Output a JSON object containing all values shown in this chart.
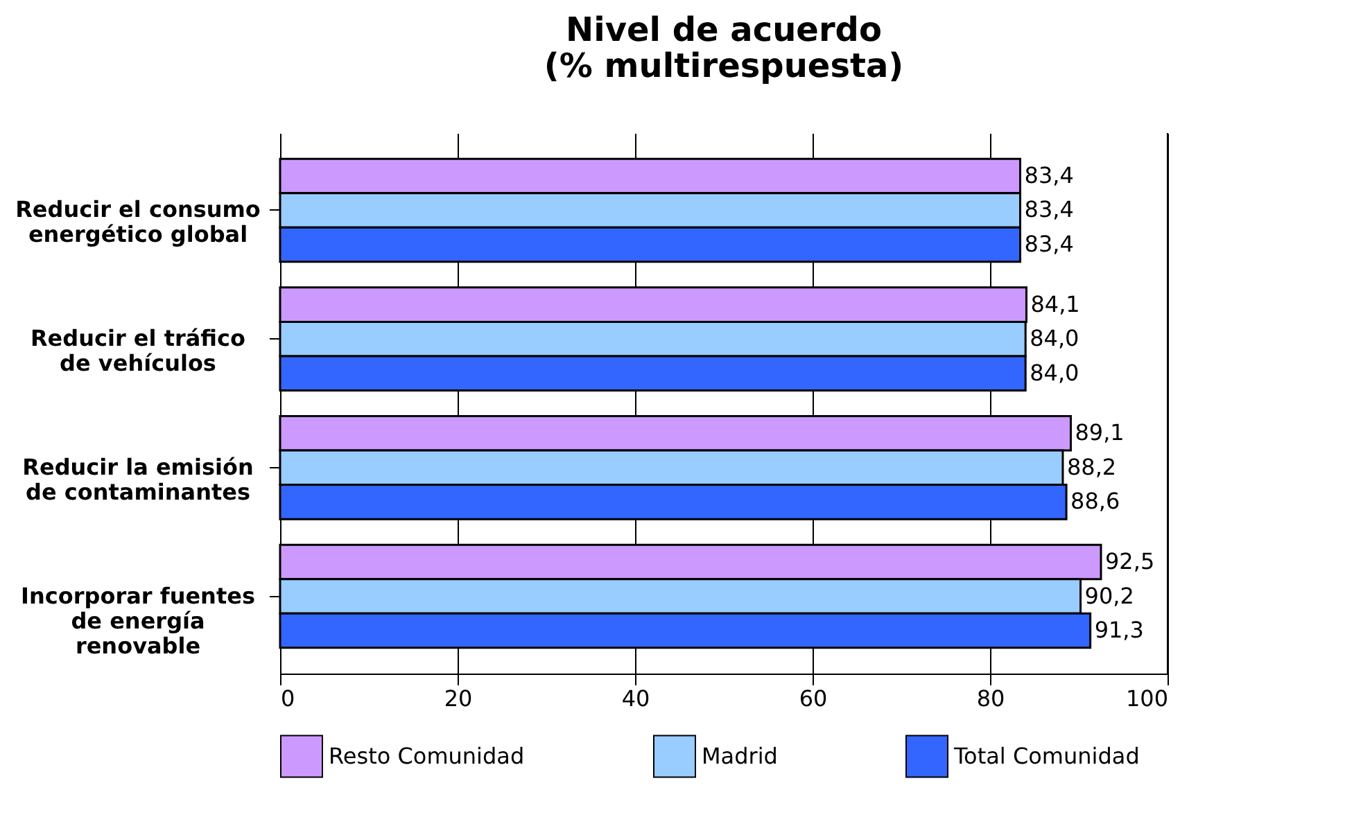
{
  "chart_data": {
    "type": "bar",
    "orientation": "horizontal",
    "title": "Nivel de acuerdo\n(% multirespuesta)",
    "categories": [
      "Reducir el consumo energético global",
      "Reducir el tráfico de vehículos",
      "Reducir la emisión de contaminantes",
      "Incorporar fuentes de energía renovable"
    ],
    "series": [
      {
        "name": "Resto Comunidad",
        "color": "#cc99ff",
        "values": [
          83.4,
          84.1,
          89.1,
          92.5
        ],
        "value_labels": [
          "83,4",
          "84,1",
          "89,1",
          "92,5"
        ]
      },
      {
        "name": "Madrid",
        "color": "#99ccff",
        "values": [
          83.4,
          84.0,
          88.2,
          90.2
        ],
        "value_labels": [
          "83,4",
          "84,0",
          "88,2",
          "90,2"
        ]
      },
      {
        "name": "Total Comunidad",
        "color": "#3366ff",
        "values": [
          83.4,
          84.0,
          88.6,
          91.3
        ],
        "value_labels": [
          "83,4",
          "84,0",
          "88,6",
          "91,3"
        ]
      }
    ],
    "xlim": [
      0,
      100
    ],
    "xticks": [
      0,
      20,
      40,
      60,
      80,
      100
    ],
    "grid": "x",
    "legend": "bottom"
  }
}
